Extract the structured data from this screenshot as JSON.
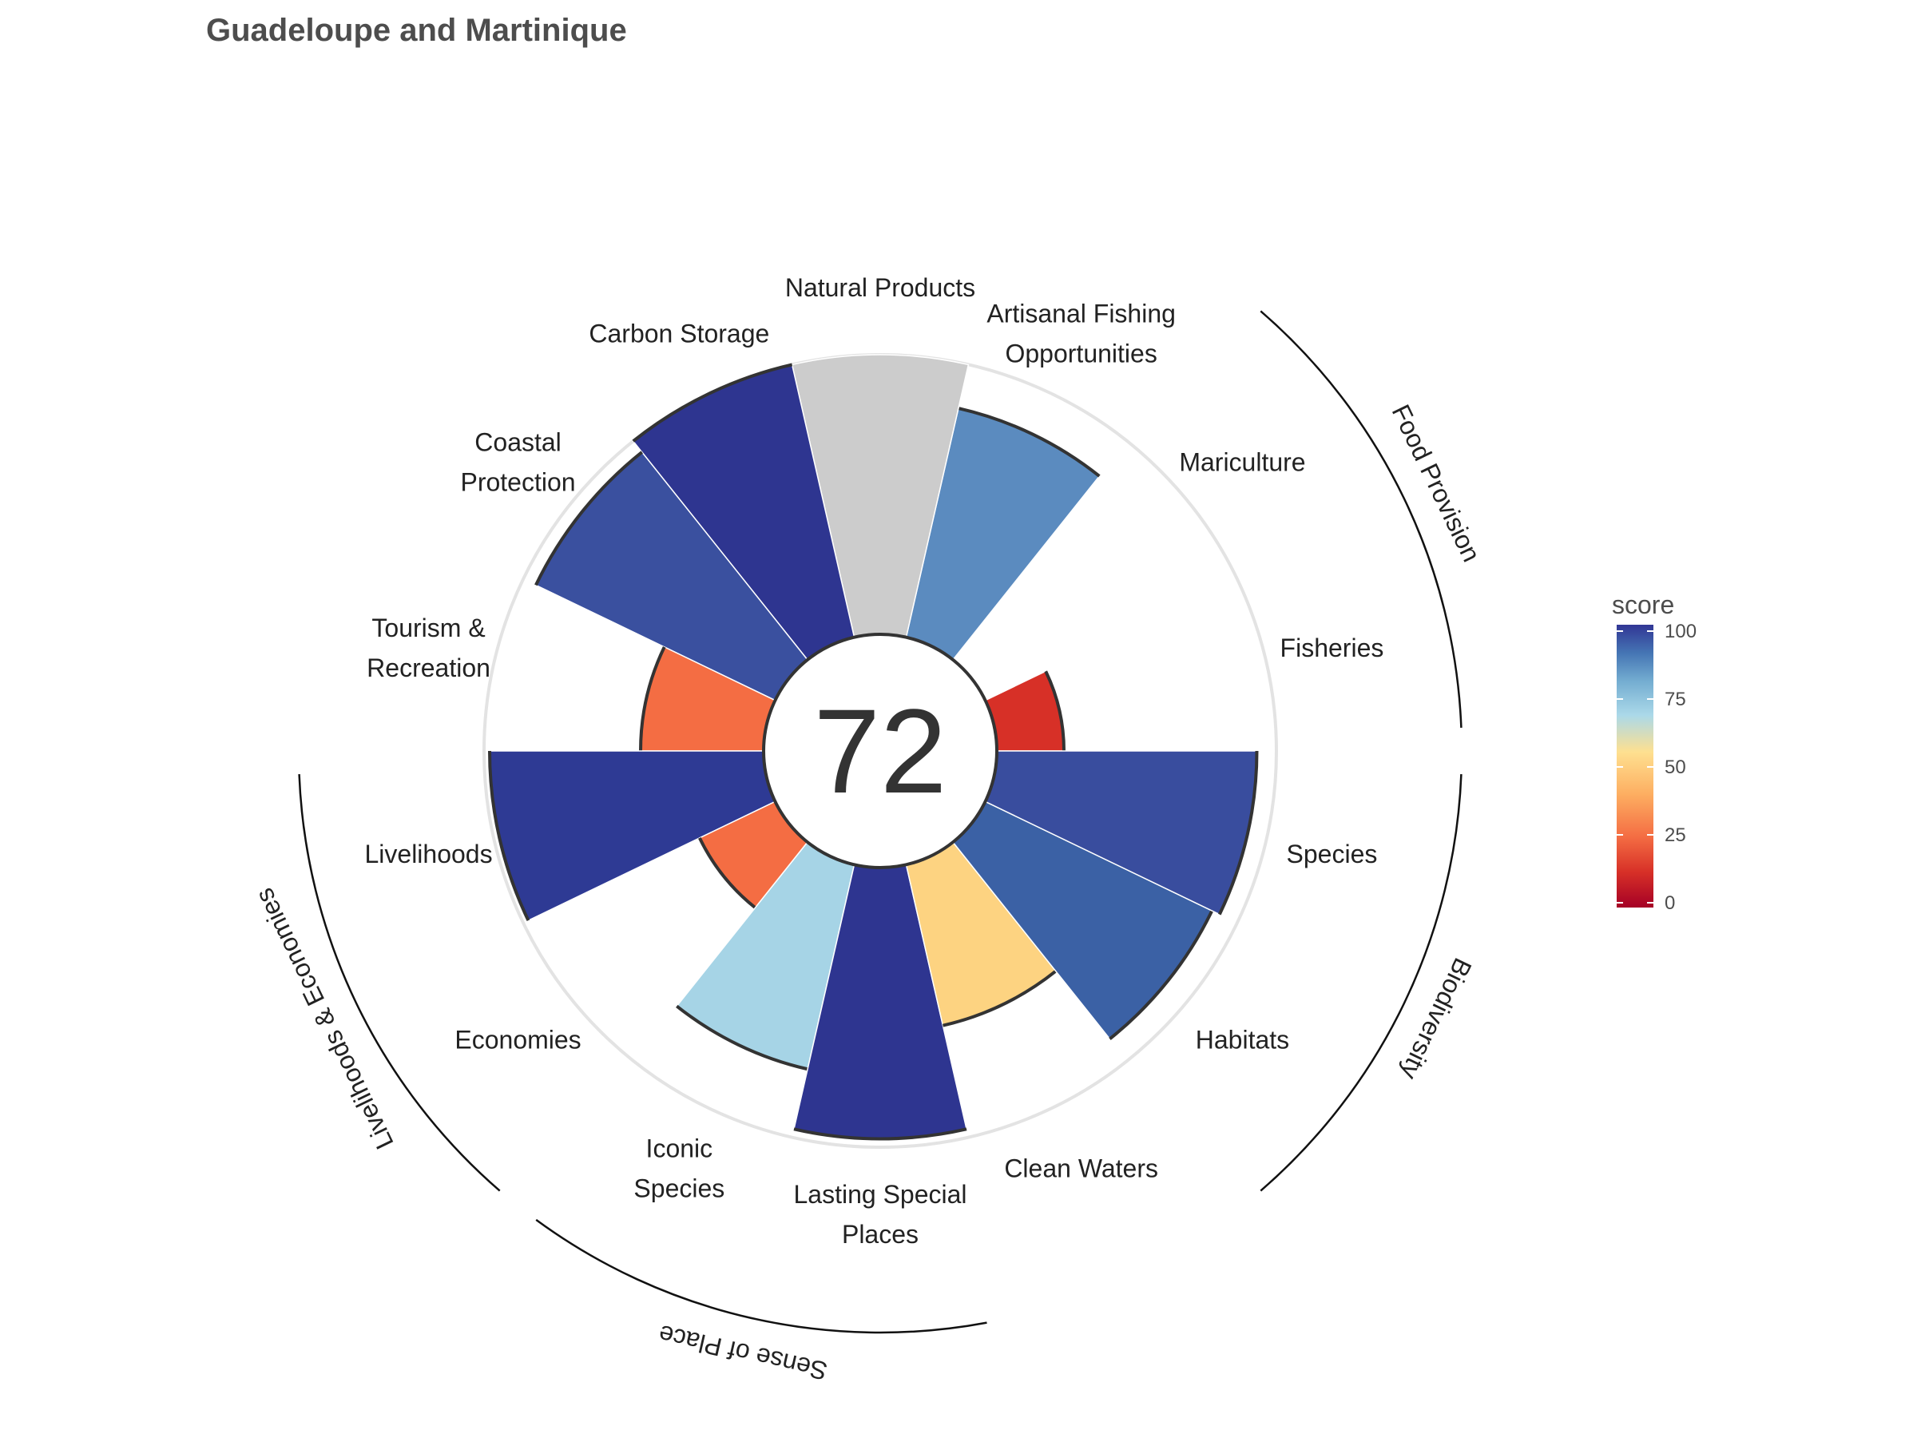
{
  "title": "Guadeloupe and Martinique",
  "chart_data": {
    "type": "polar-bar",
    "title": "Guadeloupe and Martinique",
    "center_score": "72",
    "rlim": [
      0,
      100
    ],
    "goals": [
      {
        "label": [
          "Fisheries"
        ],
        "value": 24,
        "color": "#d73027"
      },
      {
        "label": [
          "Mariculture"
        ],
        "value": null,
        "color": null
      },
      {
        "label": [
          "Artisanal Fishing",
          "Opportunities"
        ],
        "value": 84,
        "color": "#5b8bbf"
      },
      {
        "label": [
          "Natural Products"
        ],
        "value": 100,
        "color": "#cccccc"
      },
      {
        "label": [
          "Carbon Storage"
        ],
        "value": 100,
        "color": "#2e3590"
      },
      {
        "label": [
          "Coastal",
          "Protection"
        ],
        "value": 95,
        "color": "#3a509f"
      },
      {
        "label": [
          "Tourism &",
          "Recreation"
        ],
        "value": 44,
        "color": "#f46d43"
      },
      {
        "label": [
          "Livelihoods"
        ],
        "value": 98,
        "color": "#2e3a94"
      },
      {
        "label": [
          "Economies"
        ],
        "value": 30,
        "color": "#f46d43"
      },
      {
        "label": [
          "Iconic",
          "Species"
        ],
        "value": 75,
        "color": "#a6d4e6"
      },
      {
        "label": [
          "Lasting Special",
          "Places"
        ],
        "value": 97,
        "color": "#2e3590"
      },
      {
        "label": [
          "Clean Waters"
        ],
        "value": 59,
        "color": "#fdd381"
      },
      {
        "label": [
          "Habitats"
        ],
        "value": 90,
        "color": "#3b61a5"
      },
      {
        "label": [
          "Species"
        ],
        "value": 93,
        "color": "#394d9e"
      }
    ],
    "groups": [
      {
        "name": "Food Provision"
      },
      {
        "name": "Biodiversity"
      },
      {
        "name": "Sense of Place"
      },
      {
        "name": "Livelihoods & Economies"
      }
    ],
    "legend": {
      "title": "score",
      "ticks": [
        "0",
        "25",
        "50",
        "75",
        "100"
      ],
      "placement": "right",
      "colors": [
        "#a50026",
        "#d73027",
        "#f46d43",
        "#fdae61",
        "#fee090",
        "#abd9e9",
        "#74add1",
        "#4575b4",
        "#313695"
      ]
    }
  }
}
